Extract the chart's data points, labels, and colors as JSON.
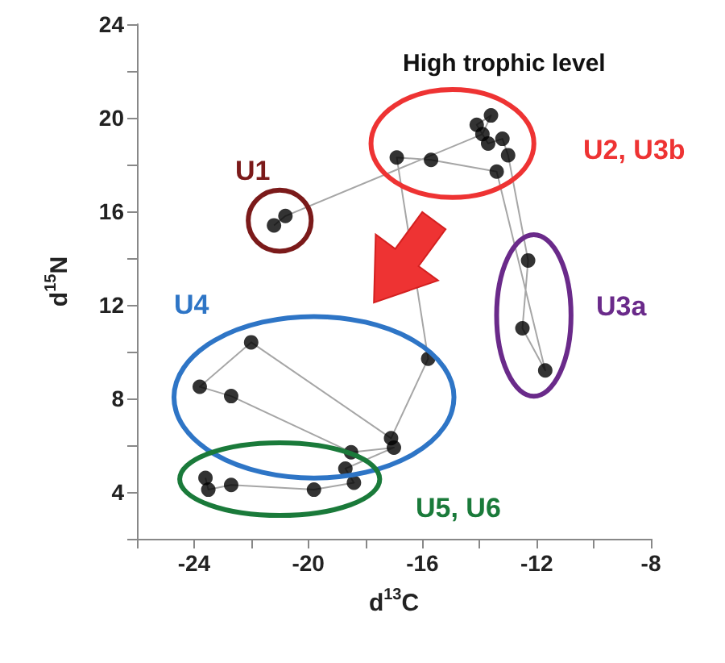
{
  "chart_data": {
    "type": "scatter",
    "xlabel": "d$^{13}$C",
    "ylabel": "d$^{15}$N",
    "xlim": [
      -26,
      -8
    ],
    "xticks": [
      {
        "value": -26,
        "label": null
      },
      -24,
      {
        "value": -22,
        "label": null
      },
      -20,
      {
        "value": -18,
        "label": null
      },
      -16,
      {
        "value": -14,
        "label": null
      },
      -12,
      {
        "value": -10,
        "label": null
      },
      -8
    ],
    "ylim": [
      2,
      24
    ],
    "yticks": [
      {
        "value": 2,
        "label": null
      },
      4,
      {
        "value": 6,
        "label": null
      },
      8,
      {
        "value": 10,
        "label": null
      },
      12,
      {
        "value": 14,
        "label": null
      },
      16,
      {
        "value": 18,
        "label": null
      },
      20,
      {
        "value": 22,
        "label": null
      },
      24
    ],
    "grid": false,
    "marker": "circle",
    "series": [
      {
        "type": "line",
        "color": "#a6a6a6",
        "marker": "none",
        "x": [
          -21.2,
          -20.8,
          -13.9,
          -13.6,
          -14.1,
          -13.7,
          -13.2,
          -13.0,
          -12.3,
          -12.5,
          -11.7,
          -13.4,
          -15.7,
          -16.9,
          -15.8,
          -17.1,
          -22.0,
          -23.8,
          -22.7,
          -18.5,
          -17.0,
          -18.7,
          -18.4,
          -19.8,
          -22.7,
          -23.5,
          -23.6
        ],
        "values": [
          15.4,
          15.8,
          19.3,
          20.1,
          19.7,
          18.9,
          19.1,
          18.4,
          13.9,
          11.0,
          9.2,
          17.7,
          18.2,
          18.3,
          9.7,
          6.3,
          10.4,
          8.5,
          8.1,
          5.7,
          5.9,
          5.0,
          4.4,
          4.1,
          4.3,
          4.1,
          4.6
        ]
      },
      {
        "color": "#000000",
        "x": [
          -21.2,
          -20.8
        ],
        "values": [
          15.4,
          15.8
        ]
      },
      {
        "color": "#000000",
        "x": [
          -16.9,
          -15.7,
          -14.1,
          -13.6,
          -13.9,
          -13.7,
          -13.2,
          -13.0,
          -13.4
        ],
        "values": [
          18.3,
          18.2,
          19.7,
          20.1,
          19.3,
          18.9,
          19.1,
          18.4,
          17.7
        ]
      },
      {
        "color": "#000000",
        "x": [
          -12.3,
          -12.5,
          -11.7
        ],
        "values": [
          13.9,
          11.0,
          9.2
        ]
      },
      {
        "color": "#000000",
        "x": [
          -22.0,
          -23.8,
          -22.7,
          -15.8,
          -17.1,
          -17.0,
          -18.5
        ],
        "values": [
          10.4,
          8.5,
          8.1,
          9.7,
          6.3,
          5.9,
          5.7
        ]
      },
      {
        "color": "#000000",
        "x": [
          -18.7,
          -18.4,
          -19.8,
          -22.7,
          -23.6,
          -23.5
        ],
        "values": [
          5.0,
          4.4,
          4.1,
          4.3,
          4.6,
          4.1
        ]
      }
    ],
    "annotations": [
      "High trophic level",
      "U1",
      "U2, U3b",
      "U3a",
      "U4",
      "U5, U6"
    ]
  }
}
